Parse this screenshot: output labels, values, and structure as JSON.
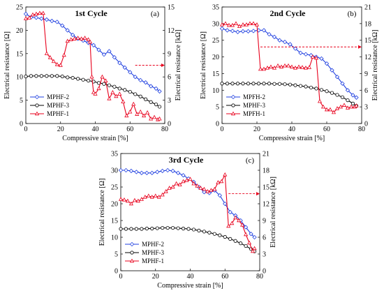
{
  "colors": {
    "MPHF-2": "#1f3fe0",
    "MPHF-3": "#000000",
    "MPHF-1": "#e8001c",
    "arrow": "#e8001c",
    "grid": "#d0d0d0"
  },
  "chart_data": [
    {
      "type": "line",
      "title": "1st Cycle",
      "panel_label": "(a)",
      "xlabel": "Compressive strain [%]",
      "ylabel": "Electrical resistance [Ω]",
      "y2label": "Electrical resistance [kΩ]",
      "xlim": [
        0,
        80
      ],
      "ylim": [
        0,
        25
      ],
      "y2lim": [
        0,
        15
      ],
      "xticks": [
        "0",
        "20",
        "40",
        "60",
        "80"
      ],
      "yticks": [
        "0",
        "5",
        "10",
        "15",
        "20",
        "25"
      ],
      "y2ticks": [
        "0",
        "3",
        "6",
        "9",
        "12",
        "15"
      ],
      "grid": false,
      "legend_position": "lower-left",
      "arrow": {
        "from_x": 63,
        "to_x": 80,
        "axis": "right",
        "level": 7.5
      },
      "series": [
        {
          "name": "MPHF-2",
          "axis": "left",
          "marker": "diamond",
          "x": [
            0,
            3,
            6,
            9,
            12,
            15,
            18,
            21,
            24,
            27,
            30,
            33,
            36,
            39,
            42,
            45,
            48,
            51,
            54,
            57,
            60,
            63,
            66,
            69,
            72,
            75,
            77
          ],
          "y": [
            23.5,
            22.8,
            22.7,
            22.5,
            22.3,
            22.0,
            21.8,
            21.0,
            20.0,
            19.0,
            18.2,
            17.8,
            17.3,
            16.8,
            15.8,
            14.8,
            15.5,
            14.2,
            13.0,
            12.0,
            11.0,
            10.0,
            9.3,
            8.8,
            8.0,
            7.5,
            6.9
          ]
        },
        {
          "name": "MPHF-3",
          "axis": "left",
          "marker": "circle",
          "x": [
            0,
            3,
            6,
            9,
            12,
            15,
            18,
            21,
            24,
            27,
            30,
            33,
            36,
            39,
            42,
            45,
            48,
            51,
            54,
            57,
            60,
            63,
            66,
            69,
            72,
            75,
            77
          ],
          "y": [
            10.1,
            10.2,
            10.2,
            10.2,
            10.2,
            10.2,
            10.2,
            10.1,
            9.9,
            9.8,
            9.6,
            9.4,
            9.2,
            9.0,
            8.7,
            8.5,
            8.2,
            7.9,
            7.5,
            7.2,
            6.8,
            6.3,
            5.8,
            5.2,
            4.6,
            4.1,
            3.6
          ]
        },
        {
          "name": "MPHF-1",
          "axis": "right",
          "marker": "triangle",
          "x": [
            0,
            2,
            4,
            6,
            8,
            10,
            12,
            14,
            16,
            18,
            20,
            22,
            24,
            26,
            28,
            30,
            32,
            34,
            36,
            37,
            38,
            39,
            40,
            42,
            44,
            46,
            48,
            50,
            52,
            54,
            56,
            58,
            60,
            62,
            64,
            66,
            68,
            70,
            72,
            74,
            76,
            77
          ],
          "y": [
            13.5,
            13.6,
            14.0,
            14.1,
            14.2,
            14.2,
            9.0,
            8.5,
            8.0,
            7.6,
            7.5,
            8.8,
            10.6,
            10.8,
            10.9,
            11.0,
            10.9,
            11.0,
            10.8,
            10.5,
            6.0,
            4.0,
            3.8,
            4.5,
            6.0,
            5.5,
            3.2,
            4.0,
            3.5,
            3.8,
            2.8,
            1.0,
            1.5,
            2.5,
            1.2,
            1.5,
            1.0,
            1.4,
            0.6,
            0.8,
            0.5,
            0.6
          ]
        }
      ],
      "legend": [
        "MPHF-2",
        "MPHF-3",
        "MPHF-1"
      ]
    },
    {
      "type": "line",
      "title": "2nd Cycle",
      "panel_label": "(b)",
      "xlabel": "Compressive strain [%]",
      "ylabel": "Electrical resistance [Ω]",
      "y2label": "Electrical resistance [kΩ]",
      "xlim": [
        0,
        80
      ],
      "ylim": [
        0,
        35
      ],
      "y2lim": [
        0,
        21
      ],
      "xticks": [
        "0",
        "20",
        "40",
        "60",
        "80"
      ],
      "yticks": [
        "0",
        "5",
        "10",
        "15",
        "20",
        "25",
        "30",
        "35"
      ],
      "y2ticks": [
        "0",
        "3",
        "6",
        "9",
        "12",
        "15",
        "18",
        "21"
      ],
      "grid": false,
      "legend_position": "lower-left",
      "arrow": {
        "from_x": 22,
        "to_x": 80,
        "axis": "right",
        "level": 13.8
      },
      "series": [
        {
          "name": "MPFH-2",
          "axis": "left",
          "marker": "diamond",
          "x": [
            0,
            3,
            6,
            9,
            12,
            15,
            18,
            21,
            24,
            27,
            30,
            33,
            36,
            39,
            42,
            45,
            48,
            51,
            54,
            57,
            60,
            63,
            66,
            69,
            72,
            75,
            77
          ],
          "y": [
            28.5,
            28.0,
            27.8,
            27.5,
            27.7,
            27.7,
            27.8,
            28.0,
            28.0,
            26.8,
            26.0,
            25.0,
            24.5,
            23.8,
            22.5,
            21.2,
            20.8,
            20.5,
            20.0,
            19.5,
            18.0,
            16.0,
            14.0,
            12.0,
            10.0,
            8.5,
            7.8
          ]
        },
        {
          "name": "MPHF-3",
          "axis": "left",
          "marker": "circle",
          "x": [
            0,
            3,
            6,
            9,
            12,
            15,
            18,
            21,
            24,
            27,
            30,
            33,
            36,
            39,
            42,
            45,
            48,
            51,
            54,
            57,
            60,
            63,
            66,
            69,
            72,
            75,
            77
          ],
          "y": [
            12.0,
            12.0,
            12.0,
            12.0,
            12.0,
            12.0,
            12.0,
            12.0,
            12.0,
            12.0,
            11.9,
            11.9,
            11.8,
            11.7,
            11.5,
            11.3,
            11.1,
            10.8,
            10.5,
            10.1,
            9.7,
            9.2,
            8.6,
            7.9,
            7.0,
            6.0,
            5.3
          ]
        },
        {
          "name": "MPFH-1",
          "axis": "right",
          "marker": "triangle",
          "x": [
            0,
            2,
            4,
            6,
            8,
            10,
            12,
            14,
            16,
            18,
            20,
            22,
            24,
            26,
            28,
            30,
            32,
            34,
            36,
            38,
            40,
            42,
            44,
            46,
            48,
            50,
            52,
            54,
            56,
            58,
            60,
            62,
            64,
            66,
            68,
            70,
            72,
            74,
            76,
            77
          ],
          "y": [
            17.8,
            18.0,
            17.7,
            17.7,
            18.0,
            17.5,
            17.8,
            17.8,
            18.0,
            18.0,
            17.8,
            9.8,
            9.8,
            10.0,
            10.2,
            10.0,
            10.4,
            10.2,
            10.4,
            10.4,
            10.2,
            10.0,
            10.2,
            10.1,
            10.0,
            10.1,
            12.0,
            11.8,
            4.0,
            3.0,
            2.5,
            2.5,
            2.0,
            2.7,
            3.0,
            3.3,
            2.8,
            3.0,
            3.0,
            3.2
          ]
        }
      ],
      "legend": [
        "MPFH-2",
        "MPHF-3",
        "MPFH-1"
      ]
    },
    {
      "type": "line",
      "title": "3rd Cycle",
      "panel_label": "(c)",
      "xlabel": "Compressive strain [%]",
      "ylabel": "Electrical resistance [Ω]",
      "y2label": "Electrical resistance [kΩ]",
      "xlim": [
        0,
        80
      ],
      "ylim": [
        0,
        35
      ],
      "y2lim": [
        0,
        21
      ],
      "xticks": [
        "0",
        "20",
        "40",
        "60",
        "80"
      ],
      "yticks": [
        "0",
        "5",
        "10",
        "15",
        "20",
        "25",
        "30",
        "35"
      ],
      "y2ticks": [
        "0",
        "3",
        "6",
        "9",
        "12",
        "15",
        "18",
        "21"
      ],
      "grid": false,
      "legend_position": "lower-left",
      "arrow": {
        "from_x": 62,
        "to_x": 80,
        "axis": "right",
        "level": 13.8
      },
      "series": [
        {
          "name": "MPHF-2",
          "axis": "left",
          "marker": "diamond",
          "x": [
            0,
            3,
            6,
            9,
            12,
            15,
            18,
            21,
            24,
            27,
            30,
            33,
            36,
            39,
            42,
            45,
            48,
            51,
            54,
            57,
            60,
            63,
            66,
            69,
            72,
            75,
            77
          ],
          "y": [
            30.0,
            30.0,
            29.8,
            29.5,
            29.2,
            29.2,
            29.2,
            29.5,
            29.8,
            30.0,
            29.8,
            29.2,
            28.5,
            27.5,
            26.5,
            25.0,
            23.5,
            23.2,
            24.0,
            22.5,
            20.0,
            17.5,
            16.5,
            15.0,
            13.0,
            11.0,
            10.0
          ]
        },
        {
          "name": "MPHF-3",
          "axis": "left",
          "marker": "circle",
          "x": [
            0,
            3,
            6,
            9,
            12,
            15,
            18,
            21,
            24,
            27,
            30,
            33,
            36,
            39,
            42,
            45,
            48,
            51,
            54,
            57,
            60,
            63,
            66,
            69,
            72,
            75,
            77
          ],
          "y": [
            12.5,
            12.5,
            12.5,
            12.5,
            12.5,
            12.6,
            12.6,
            12.7,
            12.8,
            12.8,
            12.8,
            12.7,
            12.6,
            12.5,
            12.3,
            12.0,
            11.7,
            11.4,
            11.0,
            10.6,
            10.1,
            9.5,
            8.9,
            8.2,
            7.4,
            6.5,
            5.8
          ]
        },
        {
          "name": "MPHF-1",
          "axis": "right",
          "marker": "triangle",
          "x": [
            0,
            2,
            4,
            6,
            8,
            10,
            12,
            14,
            16,
            18,
            20,
            22,
            24,
            26,
            28,
            30,
            32,
            34,
            36,
            38,
            40,
            42,
            44,
            46,
            48,
            50,
            52,
            54,
            56,
            58,
            60,
            62,
            64,
            66,
            68,
            70,
            72,
            74,
            76,
            77
          ],
          "y": [
            12.8,
            12.7,
            12.5,
            12.0,
            12.6,
            12.5,
            12.8,
            13.2,
            13.4,
            13.2,
            13.4,
            13.2,
            13.6,
            14.2,
            14.8,
            15.0,
            15.6,
            15.4,
            16.0,
            16.2,
            16.4,
            15.6,
            15.2,
            14.8,
            14.6,
            14.2,
            14.4,
            14.6,
            15.8,
            16.0,
            17.2,
            8.0,
            8.5,
            9.5,
            9.0,
            8.2,
            6.5,
            5.0,
            3.5,
            4.0
          ]
        }
      ],
      "legend": [
        "MPHF-2",
        "MPHF-3",
        "MPHF-1"
      ]
    }
  ]
}
